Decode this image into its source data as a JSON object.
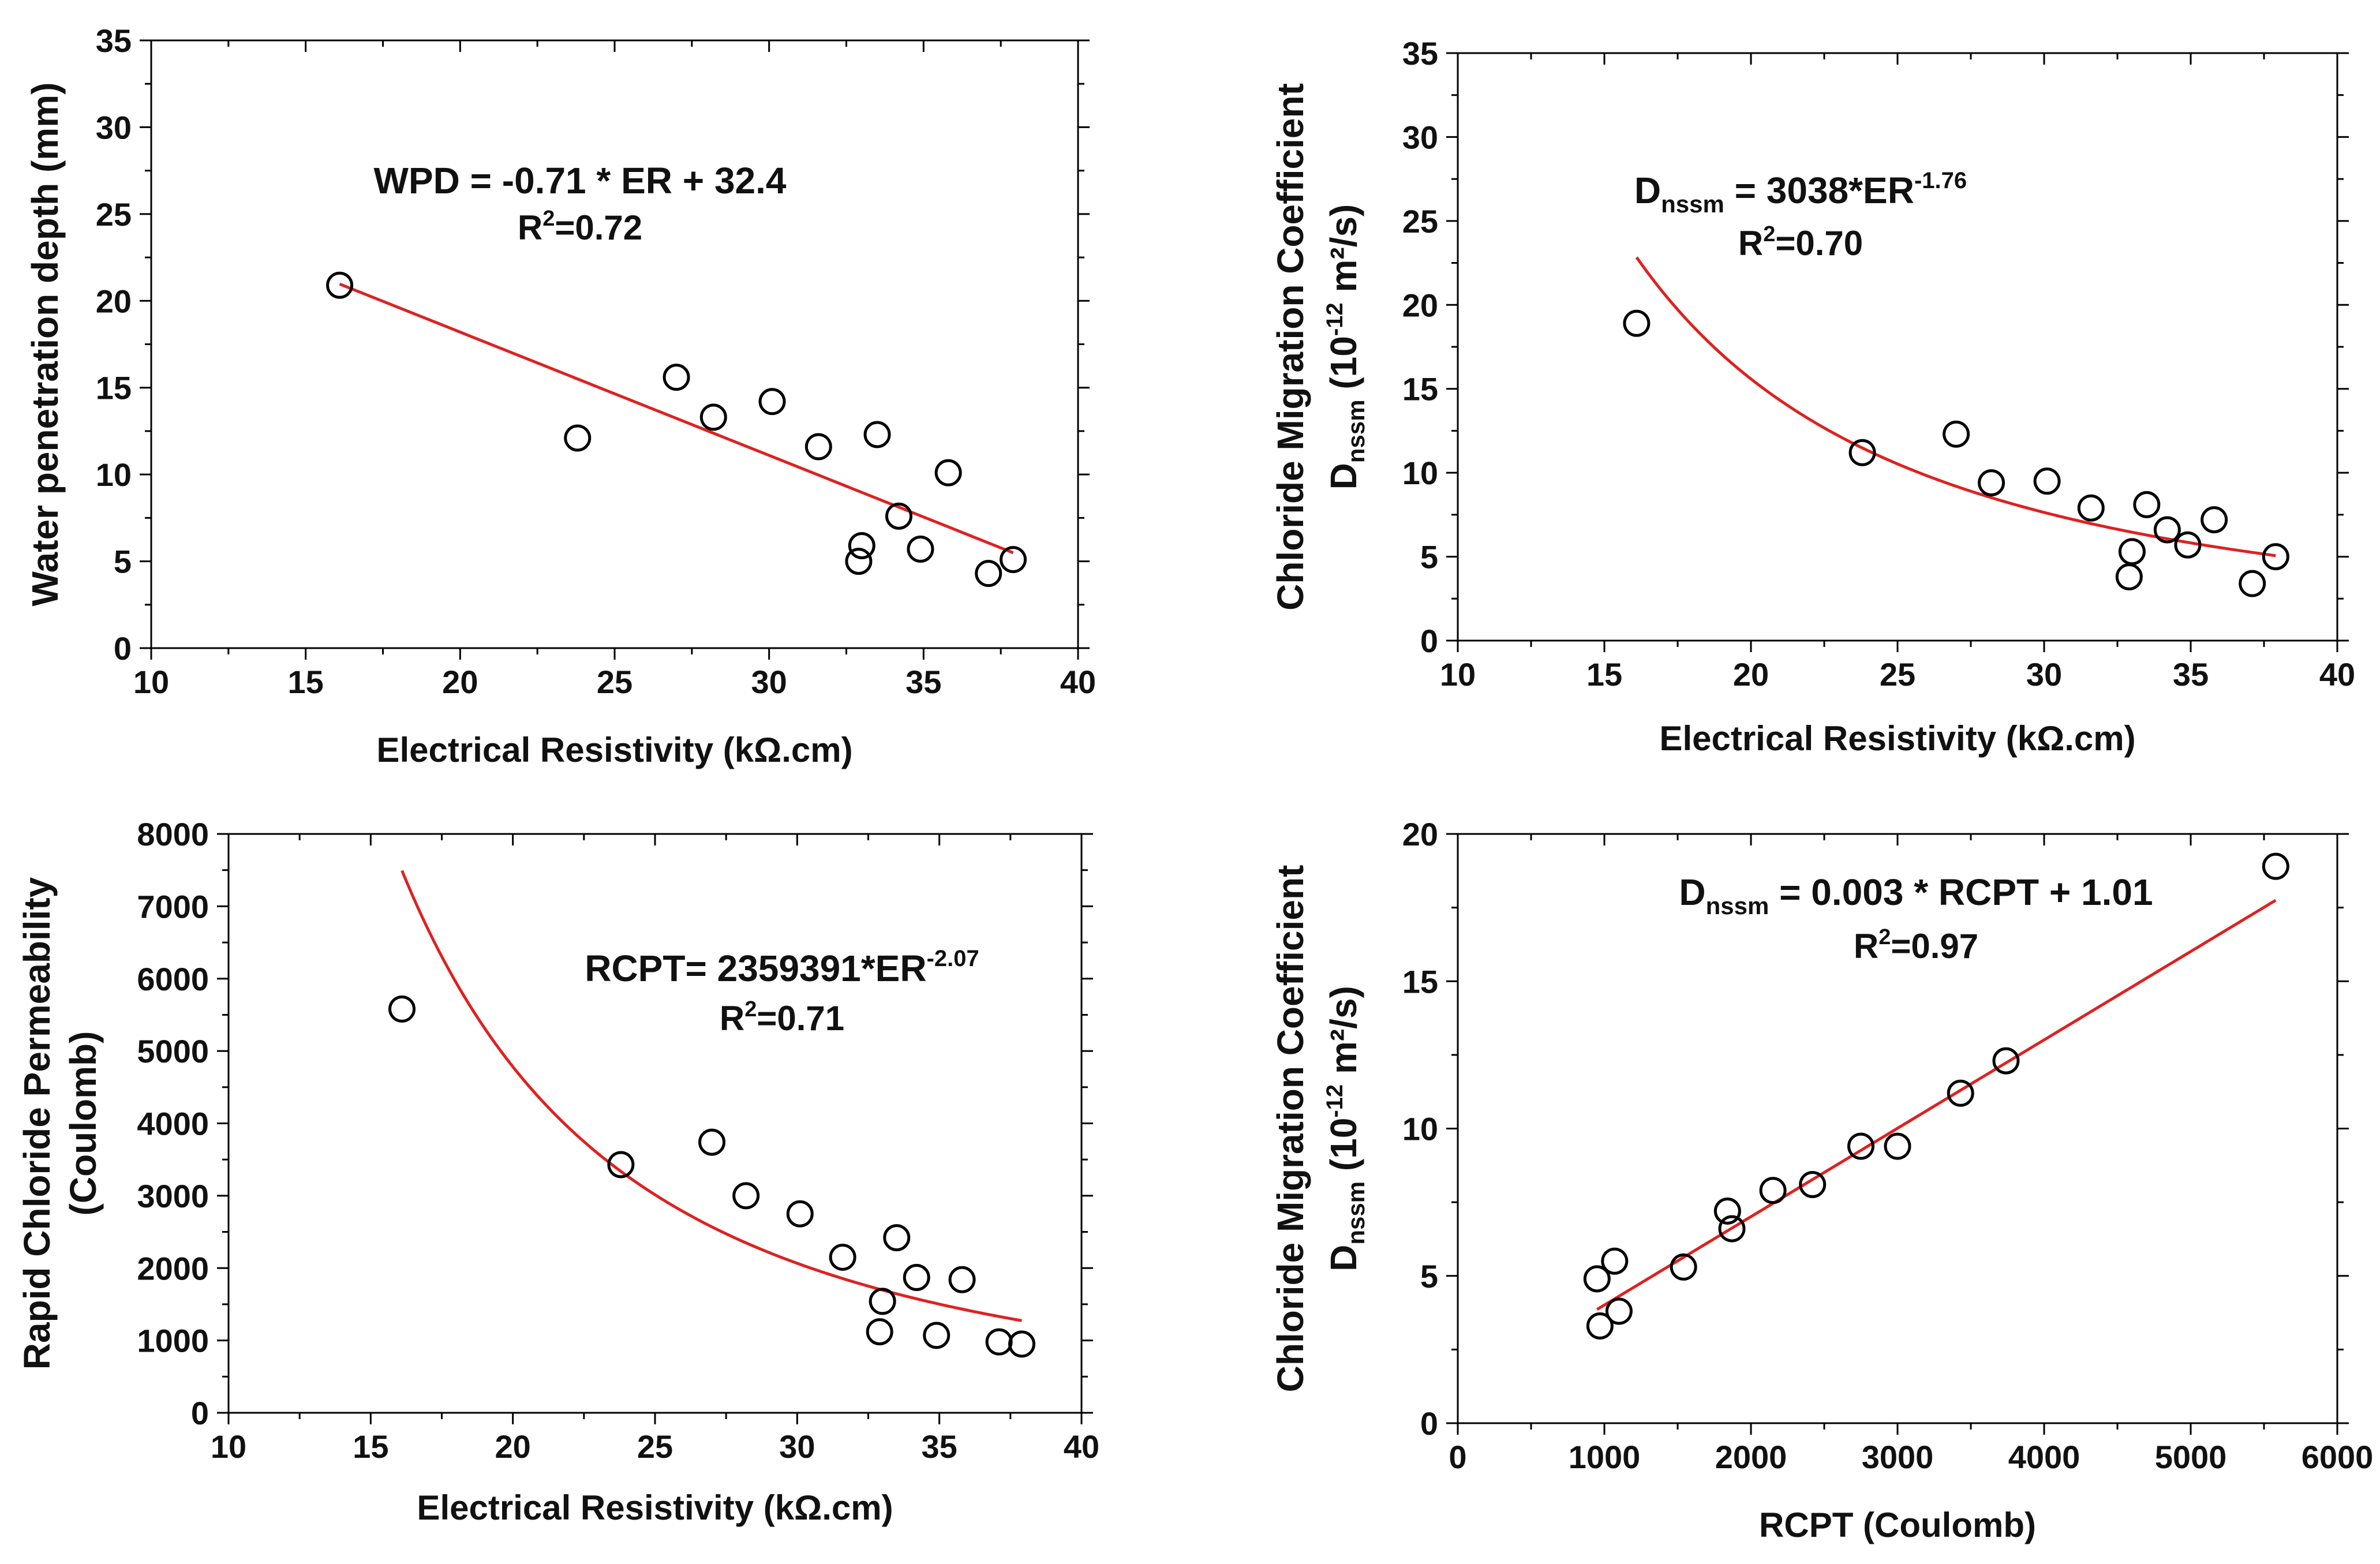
{
  "figure": {
    "background": "#ffffff",
    "axis_color": "#000000",
    "fit_color": "#e02020",
    "marker_edge": "#000000"
  },
  "chart_data": [
    {
      "id": "wpd-vs-er",
      "type": "scatter",
      "title": "",
      "xlabel": "Electrical Resistivity (kΩ.cm)",
      "ylabel_lines": [
        "Water penetration depth (mm)"
      ],
      "xlim": [
        10,
        40
      ],
      "ylim": [
        0,
        35
      ],
      "xticks": [
        10,
        15,
        20,
        25,
        30,
        35,
        40
      ],
      "yticks": [
        0,
        5,
        10,
        15,
        20,
        25,
        30,
        35
      ],
      "xtick_labels": [
        "10",
        "15",
        "20",
        "25",
        "30",
        "35",
        "40"
      ],
      "ytick_labels": [
        "0",
        "5",
        "10",
        "15",
        "20",
        "25",
        "30",
        "35"
      ],
      "points": {
        "x": [
          16.1,
          23.8,
          27.0,
          28.2,
          30.1,
          31.6,
          33.5,
          32.9,
          33.0,
          34.2,
          34.9,
          35.8,
          37.1,
          37.9
        ],
        "y": [
          20.9,
          12.1,
          15.6,
          13.3,
          14.2,
          11.6,
          12.3,
          5.0,
          5.9,
          7.6,
          5.7,
          10.1,
          4.3,
          5.1
        ]
      },
      "fit": {
        "kind": "linear",
        "a": -0.71,
        "b": 32.4,
        "x_range": [
          16.1,
          37.9
        ]
      },
      "equation": {
        "main": "WPD = -0.71 * ER + 32.4",
        "r2_prefix": "R",
        "r2_sup": "2",
        "r2_value": "=0.72"
      }
    },
    {
      "id": "dnssm-vs-er",
      "type": "scatter",
      "title": "",
      "xlabel": "Electrical Resistivity (kΩ.cm)",
      "ylabel_lines": [
        "Chloride Migration Coefficient"
      ],
      "ylabel2": {
        "base": "D",
        "sub": "nssm",
        "mid": " (10",
        "sup": "-12",
        "tail": " m²/s)"
      },
      "xlim": [
        10,
        40
      ],
      "ylim": [
        0,
        35
      ],
      "xticks": [
        10,
        15,
        20,
        25,
        30,
        35,
        40
      ],
      "yticks": [
        0,
        5,
        10,
        15,
        20,
        25,
        30,
        35
      ],
      "xtick_labels": [
        "10",
        "15",
        "20",
        "25",
        "30",
        "35",
        "40"
      ],
      "ytick_labels": [
        "0",
        "5",
        "10",
        "15",
        "20",
        "25",
        "30",
        "35"
      ],
      "points": {
        "x": [
          16.1,
          23.8,
          27.0,
          28.2,
          30.1,
          31.6,
          33.5,
          32.9,
          33.0,
          34.2,
          34.9,
          35.8,
          37.1,
          37.9
        ],
        "y": [
          18.9,
          11.2,
          12.3,
          9.4,
          9.5,
          7.9,
          8.1,
          3.8,
          5.3,
          6.6,
          5.7,
          7.2,
          3.4,
          5.0
        ]
      },
      "fit": {
        "kind": "power",
        "a": 3038,
        "b": -1.76,
        "x_range": [
          16.1,
          37.9
        ]
      },
      "equation": {
        "base": "D",
        "sub": "nssm",
        "mid": " = 3038*ER",
        "sup": "-1.76",
        "r2_prefix": "R",
        "r2_sup": "2",
        "r2_value": "=0.70"
      }
    },
    {
      "id": "rcpt-vs-er",
      "type": "scatter",
      "title": "",
      "xlabel": "Electrical Resistivity (kΩ.cm)",
      "ylabel_lines": [
        "Rapid Chloride Permeability",
        "(Coulomb)"
      ],
      "xlim": [
        10,
        40
      ],
      "ylim": [
        0,
        8000
      ],
      "xticks": [
        10,
        15,
        20,
        25,
        30,
        35,
        40
      ],
      "yticks": [
        0,
        1000,
        2000,
        3000,
        4000,
        5000,
        6000,
        7000,
        8000
      ],
      "xtick_labels": [
        "10",
        "15",
        "20",
        "25",
        "30",
        "35",
        "40"
      ],
      "ytick_labels": [
        "0",
        "1000",
        "2000",
        "3000",
        "4000",
        "5000",
        "6000",
        "7000",
        "8000"
      ],
      "points": {
        "x": [
          16.1,
          23.8,
          27.0,
          28.2,
          30.1,
          31.6,
          33.5,
          32.9,
          33.0,
          34.2,
          34.9,
          35.8,
          37.1,
          37.9
        ],
        "y": [
          5580,
          3430,
          3740,
          3000,
          2750,
          2150,
          2420,
          1120,
          1540,
          1870,
          1070,
          1840,
          980,
          950
        ]
      },
      "fit": {
        "kind": "power",
        "a": 2359391,
        "b": -2.07,
        "x_range": [
          16.1,
          37.9
        ]
      },
      "equation": {
        "main": "RCPT= 2359391*ER",
        "sup": "-2.07",
        "r2_prefix": "R",
        "r2_sup": "2",
        "r2_value": "=0.71"
      }
    },
    {
      "id": "dnssm-vs-rcpt",
      "type": "scatter",
      "title": "",
      "xlabel": "RCPT (Coulomb)",
      "ylabel_lines": [
        "Chloride Migration Coefficient"
      ],
      "ylabel2": {
        "base": "D",
        "sub": "nssm",
        "mid": " (10",
        "sup": "-12",
        "tail": " m²/s)"
      },
      "xlim": [
        0,
        6000
      ],
      "ylim": [
        0,
        20
      ],
      "xticks": [
        0,
        1000,
        2000,
        3000,
        4000,
        5000,
        6000
      ],
      "yticks": [
        0,
        5,
        10,
        15,
        20
      ],
      "xtick_labels": [
        "0",
        "1000",
        "2000",
        "3000",
        "4000",
        "5000",
        "6000"
      ],
      "ytick_labels": [
        "0",
        "5",
        "10",
        "15",
        "20"
      ],
      "points": {
        "x": [
          950,
          970,
          1070,
          1100,
          1540,
          1840,
          1870,
          2150,
          2420,
          2750,
          3000,
          3430,
          3740,
          5580
        ],
        "y": [
          4.9,
          3.3,
          5.5,
          3.8,
          5.3,
          7.2,
          6.6,
          7.9,
          8.1,
          9.4,
          9.4,
          11.2,
          12.3,
          18.9
        ]
      },
      "fit": {
        "kind": "linear",
        "a": 0.003,
        "b": 1.01,
        "x_range": [
          950,
          5580
        ]
      },
      "equation": {
        "base": "D",
        "sub": "nssm",
        "mid": " = 0.003 * RCPT + 1.01",
        "r2_prefix": "R",
        "r2_sup": "2",
        "r2_value": "=0.97"
      }
    }
  ]
}
